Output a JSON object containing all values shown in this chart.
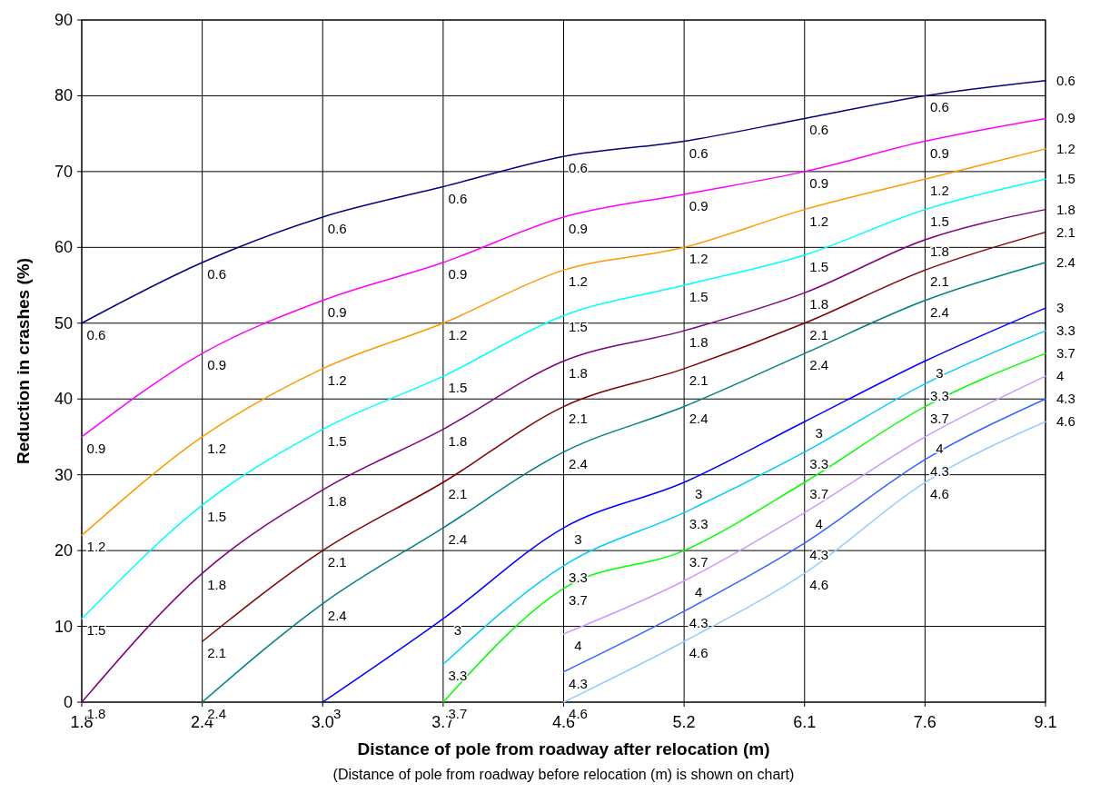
{
  "chart_data": {
    "type": "line",
    "xlabel": "Distance of pole from roadway after relocation (m)",
    "ylabel": "Reduction in crashes (%)",
    "annotations": [
      "(Distance of pole from roadway before relocation (m) is shown on chart)"
    ],
    "categories": [
      "1.8",
      "2.4",
      "3.0",
      "3.7",
      "4.6",
      "5.2",
      "6.1",
      "7.6",
      "9.1"
    ],
    "ylim": [
      0,
      90
    ],
    "yticks": [
      0,
      10,
      20,
      30,
      40,
      50,
      60,
      70,
      80,
      90
    ],
    "grid": true,
    "marker": "none",
    "line_style": "solid",
    "series": [
      {
        "name": "0.6",
        "color": "#000080",
        "values": [
          50,
          58,
          64,
          68,
          72,
          74,
          77,
          80,
          82
        ]
      },
      {
        "name": "0.9",
        "color": "#ff00ff",
        "values": [
          35,
          46,
          53,
          58,
          64,
          67,
          70,
          74,
          77
        ]
      },
      {
        "name": "1.2",
        "color": "#ff9900",
        "values": [
          22,
          35,
          44,
          50,
          57,
          60,
          65,
          69,
          73
        ]
      },
      {
        "name": "1.5",
        "color": "#00ffff",
        "values": [
          11,
          26,
          36,
          43,
          51,
          55,
          59,
          65,
          69
        ]
      },
      {
        "name": "1.8",
        "color": "#800080",
        "values": [
          0,
          17,
          28,
          36,
          45,
          49,
          54,
          61,
          65
        ]
      },
      {
        "name": "2.1",
        "color": "#800000",
        "values": [
          null,
          8,
          20,
          29,
          39,
          44,
          50,
          57,
          62
        ]
      },
      {
        "name": "2.4",
        "color": "#008080",
        "values": [
          null,
          0,
          13,
          23,
          33,
          39,
          46,
          53,
          58
        ]
      },
      {
        "name": "3",
        "color": "#0000ff",
        "values": [
          null,
          null,
          0,
          11,
          23,
          29,
          37,
          45,
          52
        ]
      },
      {
        "name": "3.3",
        "color": "#00ccff",
        "values": [
          null,
          null,
          null,
          5,
          18,
          25,
          33,
          42,
          49
        ]
      },
      {
        "name": "3.7",
        "color": "#00ff00",
        "values": [
          null,
          null,
          null,
          0,
          15,
          20,
          29,
          39,
          46
        ]
      },
      {
        "name": "4",
        "color": "#cc99ff",
        "values": [
          null,
          null,
          null,
          null,
          9,
          16,
          25,
          35,
          43
        ]
      },
      {
        "name": "4.3",
        "color": "#3366ff",
        "values": [
          null,
          null,
          null,
          null,
          4,
          12,
          21,
          32,
          40
        ]
      },
      {
        "name": "4.6",
        "color": "#99ccff",
        "values": [
          null,
          null,
          null,
          null,
          0,
          8,
          17,
          29,
          37
        ]
      }
    ]
  }
}
